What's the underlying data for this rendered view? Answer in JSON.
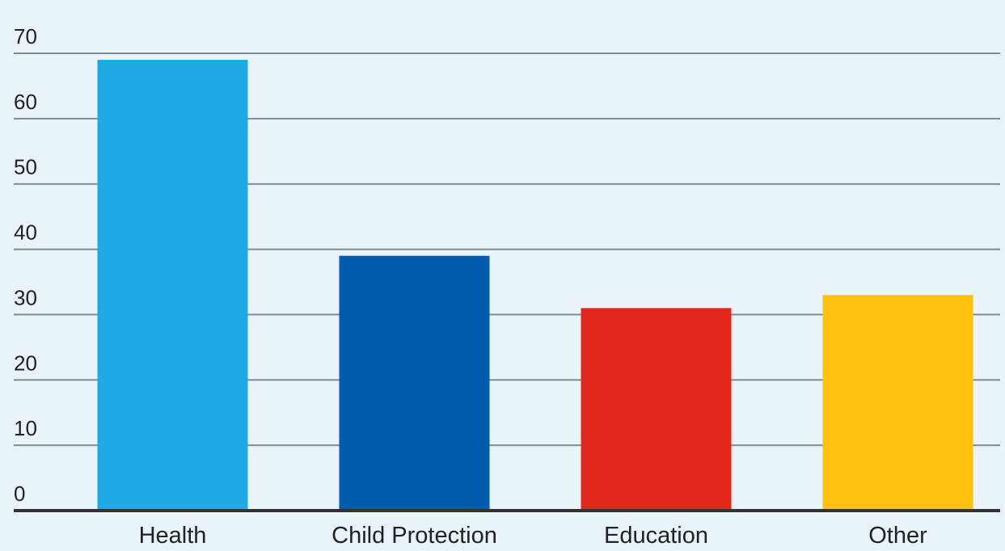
{
  "chart_data": {
    "type": "bar",
    "title": "",
    "xlabel": "",
    "ylabel": "",
    "categories": [
      "Health",
      "Child Protection",
      "Education",
      "Other"
    ],
    "values": [
      69,
      39,
      31,
      33
    ],
    "bar_colors": [
      "#1eaae2",
      "#005bac",
      "#e1261c",
      "#fec10f"
    ],
    "ylim": [
      0,
      70
    ],
    "yticks": [
      "0",
      "10",
      "20",
      "30",
      "40",
      "50",
      "60",
      "70"
    ],
    "grid": true,
    "legend": "none"
  },
  "style": {
    "background": "#e8f4fa",
    "gridline_color": "#7f8a93",
    "baseline_color": "#333333"
  }
}
